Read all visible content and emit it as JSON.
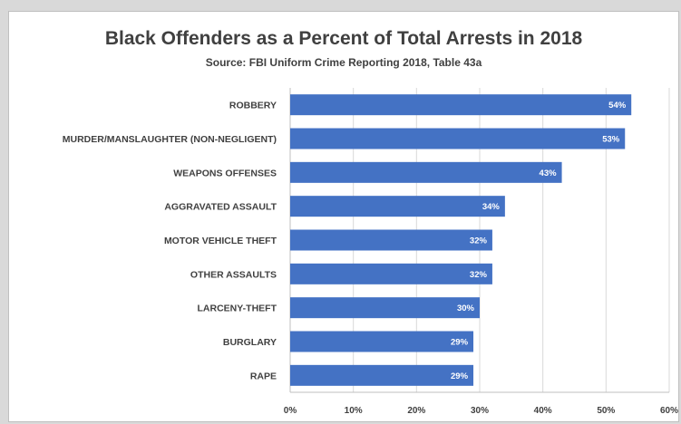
{
  "chart_data": {
    "type": "bar",
    "orientation": "horizontal",
    "title": "Black Offenders as a Percent of Total Arrests in 2018",
    "subtitle": "Source:  FBI Uniform Crime Reporting 2018, Table 43a",
    "categories": [
      "ROBBERY",
      "MURDER/MANSLAUGHTER  (NON-NEGLIGENT)",
      "WEAPONS OFFENSES",
      "AGGRAVATED  ASSAULT",
      "MOTOR VEHICLE THEFT",
      "OTHER ASSAULTS",
      "LARCENY-THEFT",
      "BURGLARY",
      "RAPE"
    ],
    "values": [
      54,
      53,
      43,
      34,
      32,
      32,
      30,
      29,
      29
    ],
    "value_labels": [
      "54%",
      "53%",
      "43%",
      "34%",
      "32%",
      "32%",
      "30%",
      "29%",
      "29%"
    ],
    "xlim": [
      0,
      60
    ],
    "xticks": [
      0,
      10,
      20,
      30,
      40,
      50,
      60
    ],
    "xtick_labels": [
      "0%",
      "10%",
      "20%",
      "30%",
      "40%",
      "50%",
      "60%"
    ],
    "grid": "vertical",
    "bar_color": "#4472c4"
  }
}
